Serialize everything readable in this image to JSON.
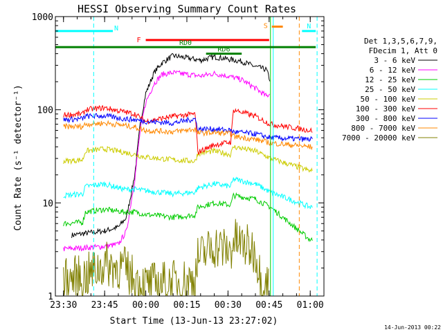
{
  "chart_data": {
    "type": "line",
    "title": "HESSI Observing Summary Count Rates",
    "xlabel": "Start Time (13-Jun-13 23:27:02)",
    "ylabel": "Count Rate (s⁻¹ detector⁻¹)",
    "y_scale": "log",
    "ylim": [
      1,
      1000
    ],
    "xlim": [
      "23:27:02",
      "01:05:00"
    ],
    "x_ticks": [
      "23:30",
      "23:45",
      "00:00",
      "00:15",
      "00:30",
      "00:45",
      "01:00"
    ],
    "y_ticks": [
      "1",
      "10",
      "100",
      "1000"
    ],
    "footer_date": "14-Jun-2013 00:22",
    "legend": {
      "placement": "right",
      "header_line1": "Det 1,3,5,6,7,9,",
      "header_line2": "FDecim 1, Att 0"
    },
    "series": [
      {
        "name": "3 - 6 keV",
        "color": "#000000",
        "x": [
          "23:33",
          "23:40",
          "23:45",
          "23:50",
          "23:53",
          "23:56",
          "23:58",
          "00:00",
          "00:03",
          "00:06",
          "00:10",
          "00:15",
          "00:20",
          "00:25",
          "00:30",
          "00:35",
          "00:40",
          "00:44",
          "00:45:30"
        ],
        "y": [
          4.5,
          4.8,
          5.0,
          5.5,
          7,
          20,
          70,
          150,
          250,
          320,
          380,
          360,
          340,
          370,
          350,
          330,
          290,
          270,
          200
        ]
      },
      {
        "name": "6 - 12 keV",
        "color": "#ff00ff",
        "x": [
          "23:30",
          "23:38",
          "23:45",
          "23:50",
          "23:53",
          "23:56",
          "23:58",
          "00:00",
          "00:03",
          "00:06",
          "00:10",
          "00:15",
          "00:20",
          "00:25",
          "00:30",
          "00:35",
          "00:40",
          "00:44",
          "00:45:30"
        ],
        "y": [
          3.2,
          3.3,
          3.4,
          3.6,
          5,
          18,
          60,
          120,
          190,
          240,
          250,
          240,
          230,
          245,
          230,
          210,
          170,
          140,
          150
        ]
      },
      {
        "name": "12 - 25 keV",
        "color": "#00cc00",
        "x": [
          "23:30",
          "23:37",
          "23:38",
          "23:45",
          "23:52",
          "23:56",
          "00:00",
          "00:10",
          "00:18",
          "00:19",
          "00:25",
          "00:31",
          "00:32",
          "00:40",
          "00:45:30",
          "01:00",
          "01:01"
        ],
        "y": [
          6,
          6.2,
          8,
          8.5,
          8,
          8,
          7.5,
          7,
          7.4,
          9,
          10,
          9.5,
          12,
          11,
          9,
          4,
          4
        ]
      },
      {
        "name": "25 - 50 keV",
        "color": "#00ffff",
        "x": [
          "23:30",
          "23:37",
          "23:38",
          "23:45",
          "23:52",
          "23:56",
          "00:00",
          "00:10",
          "00:18",
          "00:19",
          "00:25",
          "00:31",
          "00:32",
          "00:40",
          "00:45:30",
          "01:00",
          "01:01"
        ],
        "y": [
          12,
          12.5,
          15,
          16,
          14,
          14,
          13.5,
          12.5,
          13,
          14.5,
          16,
          15,
          18,
          16,
          13,
          9,
          9
        ]
      },
      {
        "name": "50 - 100 keV",
        "color": "#cccc00",
        "x": [
          "23:30",
          "23:37",
          "23:38",
          "23:45",
          "23:52",
          "23:56",
          "00:00",
          "00:10",
          "00:18",
          "00:19",
          "00:25",
          "00:31",
          "00:32",
          "00:40",
          "00:45:30",
          "01:00",
          "01:01"
        ],
        "y": [
          28,
          29,
          36,
          38,
          35,
          33,
          31,
          29,
          28,
          34,
          36,
          33,
          40,
          36,
          30,
          22,
          22
        ]
      },
      {
        "name": "100 - 300 keV",
        "color": "#ff0000",
        "x": [
          "23:30",
          "23:37",
          "23:38",
          "23:45",
          "23:52",
          "23:56",
          "00:00",
          "00:10",
          "00:18",
          "00:19",
          "00:25",
          "00:31",
          "00:32",
          "00:40",
          "00:45:30",
          "01:00",
          "01:01"
        ],
        "y": [
          88,
          90,
          100,
          105,
          95,
          90,
          75,
          85,
          90,
          35,
          42,
          45,
          100,
          85,
          70,
          60,
          60
        ]
      },
      {
        "name": "300 - 800 keV",
        "color": "#0000ff",
        "x": [
          "23:30",
          "23:37",
          "23:38",
          "23:45",
          "23:52",
          "23:56",
          "00:00",
          "00:10",
          "00:18",
          "00:19",
          "00:25",
          "00:31",
          "00:32",
          "00:40",
          "00:45:30",
          "01:00",
          "01:01"
        ],
        "y": [
          78,
          80,
          85,
          86,
          80,
          78,
          75,
          72,
          80,
          62,
          62,
          60,
          58,
          55,
          50,
          48,
          48
        ]
      },
      {
        "name": "800 - 7000 keV",
        "color": "#ff8800",
        "x": [
          "23:30",
          "23:37",
          "23:38",
          "23:45",
          "23:52",
          "23:56",
          "00:00",
          "00:10",
          "00:18",
          "00:19",
          "00:25",
          "00:31",
          "00:32",
          "00:40",
          "00:45:30",
          "01:00",
          "01:01"
        ],
        "y": [
          66,
          66,
          70,
          72,
          68,
          65,
          60,
          58,
          62,
          56,
          57,
          55,
          52,
          48,
          44,
          40,
          40
        ]
      },
      {
        "name": "7000 - 20000 keV",
        "color": "#808000",
        "x": [
          "23:30",
          "23:38",
          "23:45",
          "23:52",
          "23:56",
          "00:00",
          "00:10",
          "00:18",
          "00:19",
          "00:25",
          "00:31",
          "00:32",
          "00:40",
          "00:42",
          "00:45"
        ],
        "y": [
          1.5,
          1.6,
          2.2,
          2.0,
          1.5,
          1.3,
          1.4,
          1.5,
          2.5,
          3.5,
          3.0,
          4.0,
          3.0,
          1.5,
          1.3
        ]
      }
    ],
    "attenuator_bars": [
      {
        "label": "N",
        "color": "#00ffff",
        "x0": "23:27:02",
        "x1": "23:48",
        "y": 700
      },
      {
        "label": "N",
        "color": "#00ffff",
        "x0": "00:57",
        "x1": "01:02",
        "y": 700
      },
      {
        "label": "F",
        "color": "#ff0000",
        "x0": "00:00",
        "x1": "00:45",
        "y": 560
      },
      {
        "label": "RD0",
        "color": "#008000",
        "x0": "23:27:02",
        "x1": "01:02",
        "y": 470
      },
      {
        "label": "RD6",
        "color": "#008000",
        "x0": "00:22",
        "x1": "00:35",
        "y": 400
      },
      {
        "label": "S",
        "color": "#ff8800",
        "x0": "00:46",
        "x1": "00:50",
        "y": 780
      }
    ],
    "vertical_markers": [
      {
        "x": "23:41",
        "color": "#00ffff",
        "style": "dashed"
      },
      {
        "x": "00:45:30",
        "color": "#00cc00",
        "style": "solid"
      },
      {
        "x": "00:46:30",
        "color": "#00ffff",
        "style": "solid"
      },
      {
        "x": "00:56",
        "color": "#ff8800",
        "style": "dashed"
      },
      {
        "x": "01:02:30",
        "color": "#00ffff",
        "style": "dashed"
      }
    ]
  }
}
